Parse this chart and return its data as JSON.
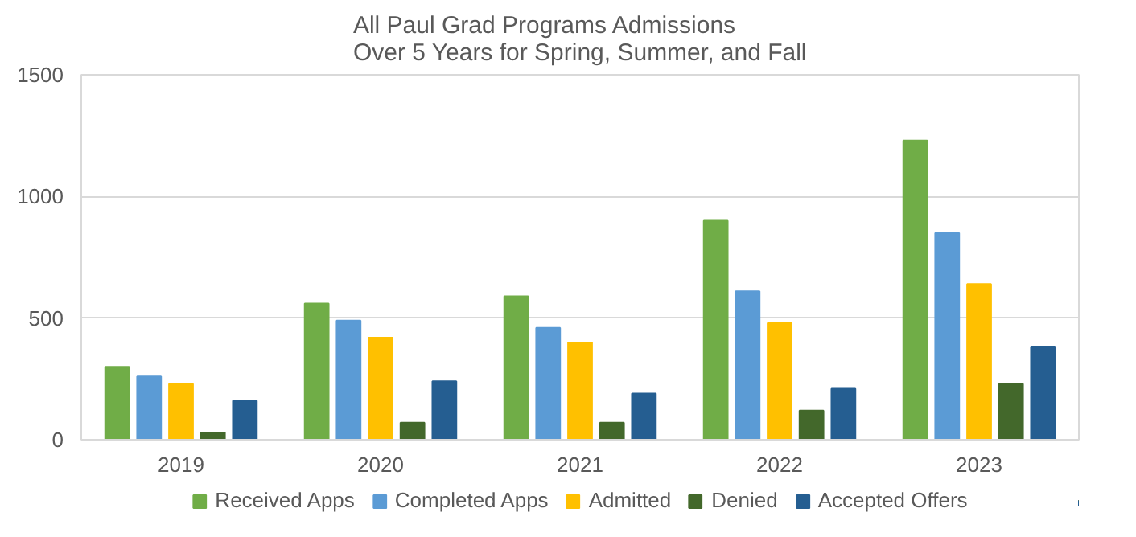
{
  "chart_data": {
    "type": "bar",
    "title": "All Paul Grad Programs Admissions\nOver 5 Years for Spring, Summer, and Fall",
    "categories": [
      "2019",
      "2020",
      "2021",
      "2022",
      "2023"
    ],
    "series": [
      {
        "name": "Received Apps",
        "color": "#70ad47",
        "values": [
          300,
          560,
          590,
          900,
          1230
        ]
      },
      {
        "name": "Completed Apps",
        "color": "#5b9bd5",
        "values": [
          260,
          490,
          460,
          610,
          850
        ]
      },
      {
        "name": "Admitted",
        "color": "#ffc000",
        "values": [
          230,
          420,
          400,
          480,
          640
        ]
      },
      {
        "name": "Denied",
        "color": "#43682b",
        "values": [
          30,
          70,
          70,
          120,
          230
        ]
      },
      {
        "name": "Accepted Offers",
        "color": "#255e91",
        "values": [
          160,
          240,
          190,
          210,
          380
        ]
      }
    ],
    "ylim": [
      0,
      1500
    ],
    "yticks": [
      0,
      500,
      1000,
      1500
    ],
    "grid": "y",
    "legend": "bottom"
  }
}
